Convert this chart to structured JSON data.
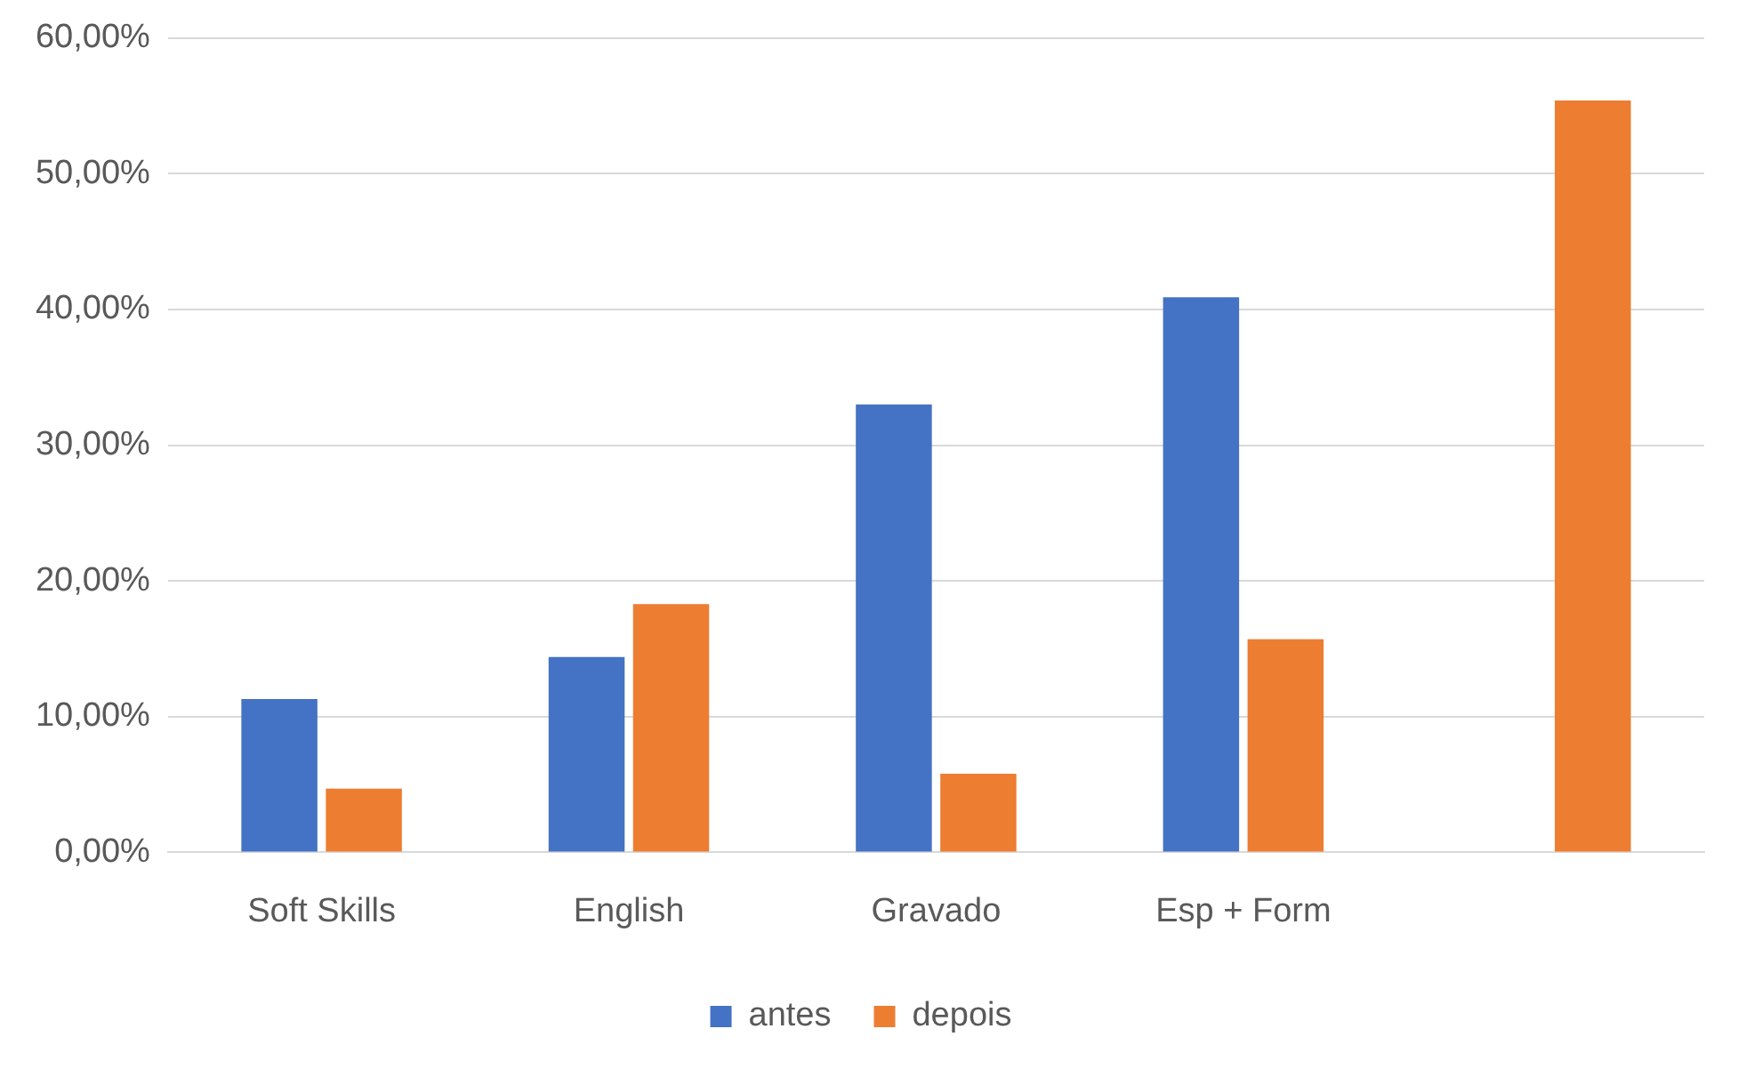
{
  "chart_data": {
    "type": "bar",
    "categories": [
      "Soft Skills",
      "English",
      "Gravado",
      "Esp + Form",
      null
    ],
    "series": [
      {
        "name": "antes",
        "color": "#4472c4",
        "values": [
          11.3,
          14.4,
          33.0,
          40.9,
          null
        ]
      },
      {
        "name": "depois",
        "color": "#ed7d31",
        "values": [
          4.7,
          18.3,
          5.8,
          15.7,
          55.4
        ]
      }
    ],
    "ylim": [
      0,
      60
    ],
    "yticks": [
      {
        "value": 0,
        "label": "0,00%"
      },
      {
        "value": 10,
        "label": "10,00%"
      },
      {
        "value": 20,
        "label": "20,00%"
      },
      {
        "value": 30,
        "label": "30,00%"
      },
      {
        "value": 40,
        "label": "40,00%"
      },
      {
        "value": 50,
        "label": "50,00%"
      },
      {
        "value": 60,
        "label": "60,00%"
      }
    ],
    "grid": "y",
    "legend": "bottom"
  }
}
